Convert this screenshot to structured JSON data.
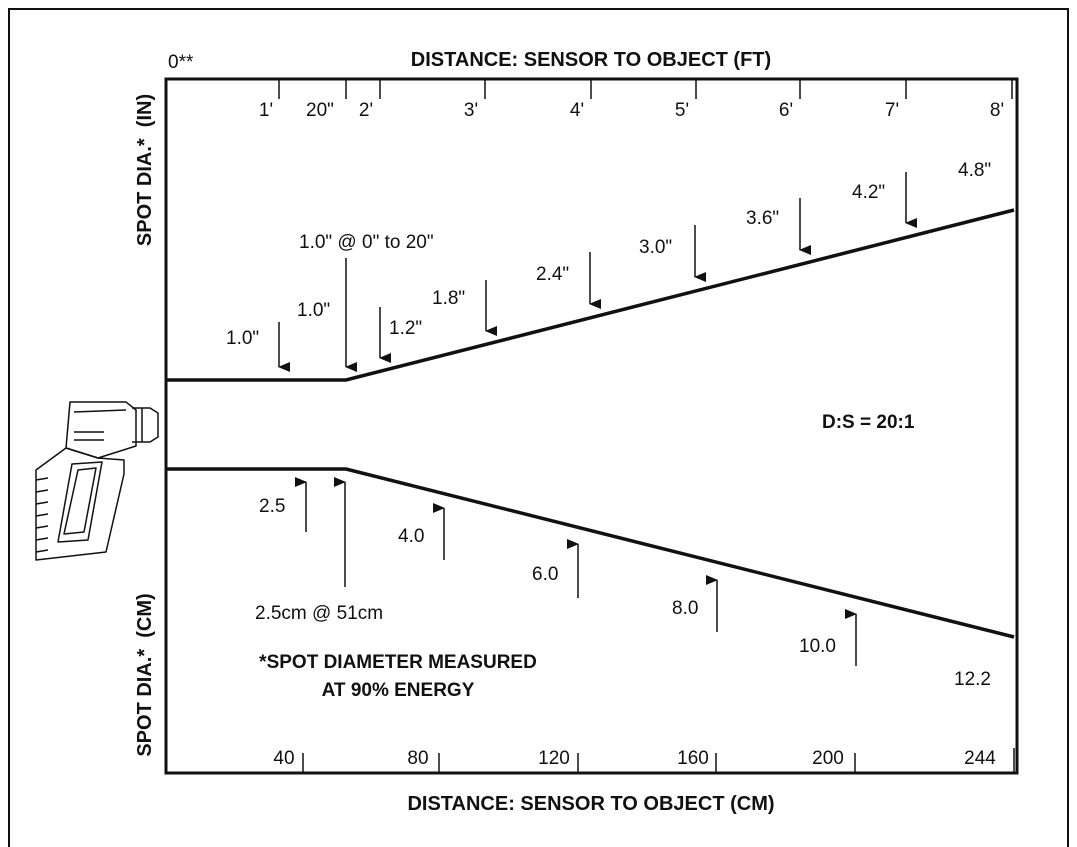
{
  "top_axis": {
    "title": "DISTANCE: SENSOR TO OBJECT (FT)",
    "origin_label": "0**",
    "ticks": [
      "1'",
      "20\"",
      "2'",
      "3'",
      "4'",
      "5'",
      "6'",
      "7'",
      "8'"
    ]
  },
  "bottom_axis": {
    "title": "DISTANCE: SENSOR TO OBJECT (CM)",
    "ticks": [
      "40",
      "80",
      "120",
      "160",
      "200",
      "244"
    ]
  },
  "left_labels": {
    "upper": "SPOT DIA.*  (IN)",
    "lower": "SPOT DIA.*  (CM)"
  },
  "inch_callouts": [
    "1.0\" @ 0\" to 20\"",
    "1.0\"",
    "1.0\"",
    "1.2\"",
    "1.8\"",
    "2.4\"",
    "3.0\"",
    "3.6\"",
    "4.2\"",
    "4.8\""
  ],
  "cm_callouts": [
    "2.5",
    "2.5cm @ 51cm",
    "4.0",
    "6.0",
    "8.0",
    "10.0",
    "12.2"
  ],
  "ratio_label": "D:S = 20:1",
  "footnote": {
    "line1": "*SPOT DIAMETER MEASURED",
    "line2": "AT 90% ENERGY"
  },
  "icons": [
    "infrared-thermometer-icon"
  ]
}
